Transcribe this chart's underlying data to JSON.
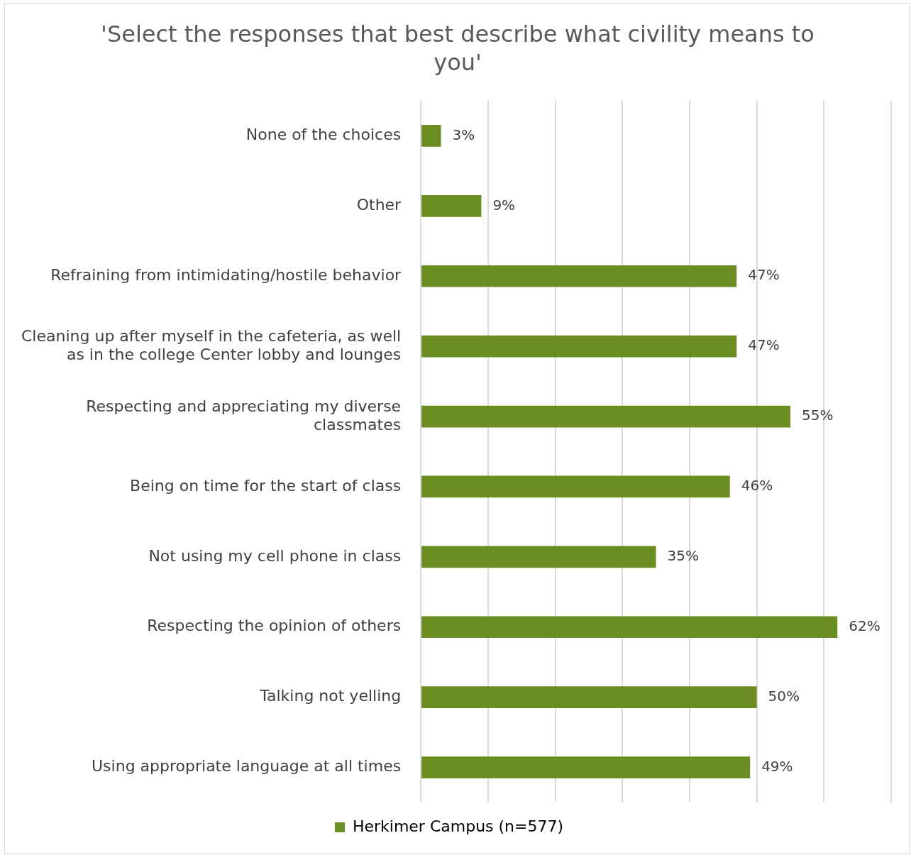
{
  "chart_data": {
    "type": "bar",
    "orientation": "horizontal",
    "title": "'Select the responses that best describe what civility means to you'",
    "categories": [
      "None of the choices",
      "Other",
      "Refraining from intimidating/hostile behavior",
      "Cleaning up after myself in the cafeteria, as well as in the college Center lobby and lounges",
      "Respecting and appreciating my diverse classmates",
      "Being on time for the start of class",
      "Not using my cell phone in class",
      "Respecting the opinion of others",
      "Talking not yelling",
      "Using appropriate language at all times"
    ],
    "series": [
      {
        "name": "Herkimer Campus (n=577)",
        "color": "#6b8e23",
        "values": [
          3,
          9,
          47,
          47,
          55,
          46,
          35,
          62,
          50,
          49
        ],
        "value_labels": [
          "3%",
          "9%",
          "47%",
          "47%",
          "55%",
          "46%",
          "35%",
          "62%",
          "50%",
          "49%"
        ]
      }
    ],
    "xlim": [
      0,
      70
    ],
    "xticks": [
      {
        "value": 0,
        "label": null
      },
      {
        "value": 10,
        "label": null
      },
      {
        "value": 20,
        "label": null
      },
      {
        "value": 30,
        "label": null
      },
      {
        "value": 40,
        "label": null
      },
      {
        "value": 50,
        "label": null
      },
      {
        "value": 60,
        "label": null
      },
      {
        "value": 70,
        "label": null
      }
    ],
    "grid": "x",
    "tick_labels": "y",
    "legend": "bottom"
  }
}
